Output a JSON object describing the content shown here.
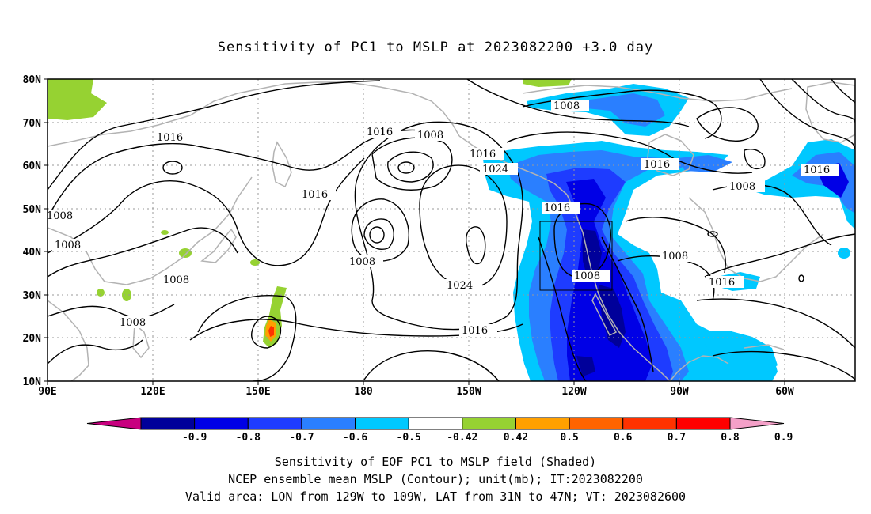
{
  "title": "Sensitivity of PC1 to MSLP at 2023082200 +3.0 day",
  "map": {
    "lat_labels": [
      "80N",
      "70N",
      "60N",
      "50N",
      "40N",
      "30N",
      "20N",
      "10N"
    ],
    "lon_labels": [
      "90E",
      "120E",
      "150E",
      "180",
      "150W",
      "120W",
      "90W",
      "60W"
    ],
    "contour_labels": [
      "1016",
      "1016",
      "1016",
      "1008",
      "1016",
      "1024",
      "1008",
      "1008",
      "1008",
      "1008",
      "1016",
      "1024",
      "1008",
      "1016",
      "1016",
      "1008",
      "1016",
      "1008",
      "1008",
      "1008",
      "1016"
    ],
    "contour_line_color": "#000000",
    "coastline_color": "#b3b3b3",
    "grid_style": "dotted"
  },
  "colorbar": {
    "labels": [
      "-0.9",
      "-0.8",
      "-0.7",
      "-0.6",
      "-0.5",
      "-0.42",
      "0.42",
      "0.5",
      "0.6",
      "0.7",
      "0.8",
      "0.9"
    ],
    "colors": [
      "#c8007f",
      "#00009a",
      "#0000e6",
      "#1e3cff",
      "#2a7fff",
      "#00c8ff",
      "#ffffff",
      "#96d232",
      "#ffa000",
      "#ff6400",
      "#ff3200",
      "#ff0000",
      "#f4a0c8"
    ]
  },
  "caption": {
    "line1": "Sensitivity of EOF PC1 to MSLP field (Shaded)",
    "line2": "NCEP ensemble mean MSLP (Contour); unit(mb); IT:2023082200",
    "line3": "Valid area: LON from 129W to 109W, LAT from 31N to 47N; VT: 2023082600"
  }
}
